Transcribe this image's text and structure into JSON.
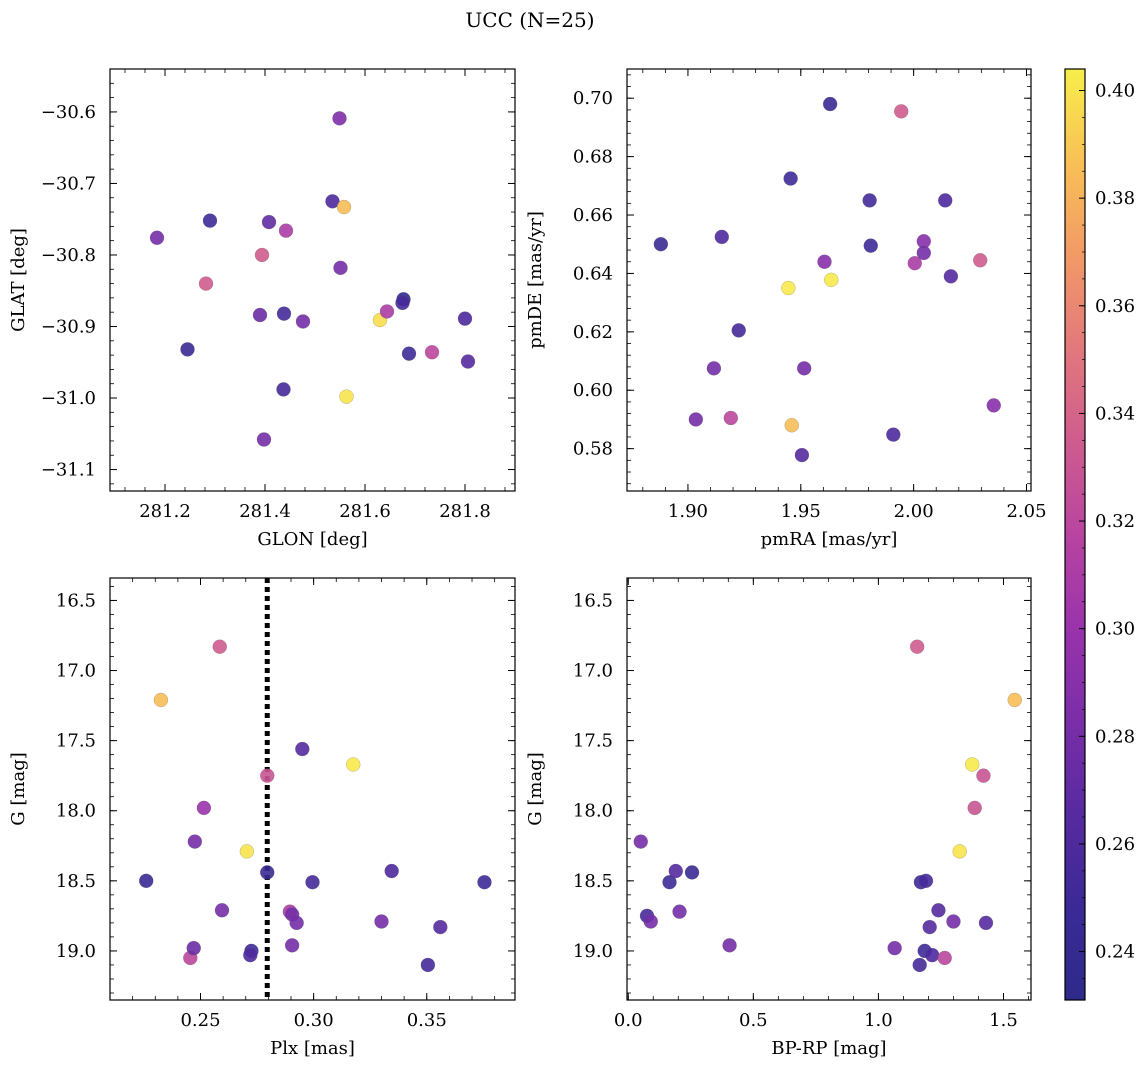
{
  "figure_title": "UCC (N=25)",
  "colorbar": {
    "range": [
      0.231,
      0.404
    ],
    "ticks": [
      0.24,
      0.26,
      0.28,
      0.3,
      0.32,
      0.34,
      0.36,
      0.38,
      0.4
    ],
    "tick_labels": [
      "0.24",
      "0.26",
      "0.28",
      "0.30",
      "0.32",
      "0.34",
      "0.36",
      "0.38",
      "0.40"
    ],
    "colormap": "plasma",
    "stops": [
      "#2e2a8a",
      "#3b2a96",
      "#572aa0",
      "#7a2ea8",
      "#9a33ac",
      "#b844a0",
      "#cf5c8e",
      "#e3787c",
      "#f29a66",
      "#f9c056",
      "#f7ee4a"
    ]
  },
  "chart_data": [
    {
      "id": "glon-glat",
      "type": "scatter",
      "xlabel": "GLON [deg]",
      "ylabel": "GLAT [deg]",
      "xlim": [
        281.09,
        281.9
      ],
      "ylim": [
        -31.13,
        -30.54
      ],
      "xticks": [
        281.2,
        281.4,
        281.6,
        281.8
      ],
      "xtick_labels": [
        "281.2",
        "281.4",
        "281.6",
        "281.8"
      ],
      "yticks": [
        -31.1,
        -31.0,
        -30.9,
        -30.8,
        -30.7,
        -30.6
      ],
      "ytick_labels": [
        "−31.1",
        "−31.0",
        "−30.9",
        "−30.8",
        "−30.7",
        "−30.6"
      ],
      "points": [
        {
          "x": 281.184,
          "y": -30.776,
          "c": 0.28
        },
        {
          "x": 281.29,
          "y": -30.752,
          "c": 0.25
        },
        {
          "x": 281.245,
          "y": -30.932,
          "c": 0.245
        },
        {
          "x": 281.282,
          "y": -30.84,
          "c": 0.335
        },
        {
          "x": 281.394,
          "y": -30.8,
          "c": 0.335
        },
        {
          "x": 281.408,
          "y": -30.754,
          "c": 0.27
        },
        {
          "x": 281.442,
          "y": -30.766,
          "c": 0.31
        },
        {
          "x": 281.438,
          "y": -30.882,
          "c": 0.255
        },
        {
          "x": 281.39,
          "y": -30.884,
          "c": 0.275
        },
        {
          "x": 281.476,
          "y": -30.893,
          "c": 0.28
        },
        {
          "x": 281.437,
          "y": -30.988,
          "c": 0.255
        },
        {
          "x": 281.398,
          "y": -31.058,
          "c": 0.28
        },
        {
          "x": 281.549,
          "y": -30.609,
          "c": 0.285
        },
        {
          "x": 281.535,
          "y": -30.725,
          "c": 0.26
        },
        {
          "x": 281.558,
          "y": -30.733,
          "c": 0.385
        },
        {
          "x": 281.551,
          "y": -30.818,
          "c": 0.28
        },
        {
          "x": 281.563,
          "y": -30.998,
          "c": 0.4
        },
        {
          "x": 281.63,
          "y": -30.891,
          "c": 0.398
        },
        {
          "x": 281.644,
          "y": -30.879,
          "c": 0.31
        },
        {
          "x": 281.677,
          "y": -30.862,
          "c": 0.235
        },
        {
          "x": 281.675,
          "y": -30.867,
          "c": 0.255
        },
        {
          "x": 281.688,
          "y": -30.938,
          "c": 0.25
        },
        {
          "x": 281.734,
          "y": -30.936,
          "c": 0.32
        },
        {
          "x": 281.8,
          "y": -30.889,
          "c": 0.26
        },
        {
          "x": 281.806,
          "y": -30.949,
          "c": 0.265
        }
      ]
    },
    {
      "id": "pmra-pmde",
      "type": "scatter",
      "xlabel": "pmRA [mas/yr]",
      "ylabel": "pmDE [mas/yr]",
      "xlim": [
        1.873,
        2.052
      ],
      "ylim": [
        0.5655,
        0.71
      ],
      "xticks": [
        1.9,
        1.95,
        2.0,
        2.05
      ],
      "xtick_labels": [
        "1.90",
        "1.95",
        "2.00",
        "2.05"
      ],
      "yticks": [
        0.58,
        0.6,
        0.62,
        0.64,
        0.66,
        0.68,
        0.7
      ],
      "ytick_labels": [
        "0.58",
        "0.60",
        "0.62",
        "0.64",
        "0.66",
        "0.68",
        "0.70"
      ],
      "points": [
        {
          "x": 1.888,
          "y": 0.65,
          "c": 0.245
        },
        {
          "x": 1.915,
          "y": 0.6525,
          "c": 0.26
        },
        {
          "x": 1.9225,
          "y": 0.6205,
          "c": 0.255
        },
        {
          "x": 1.9115,
          "y": 0.6075,
          "c": 0.28
        },
        {
          "x": 1.9035,
          "y": 0.59,
          "c": 0.28
        },
        {
          "x": 1.919,
          "y": 0.5905,
          "c": 0.32
        },
        {
          "x": 1.9445,
          "y": 0.635,
          "c": 0.402
        },
        {
          "x": 1.9455,
          "y": 0.6725,
          "c": 0.25
        },
        {
          "x": 1.946,
          "y": 0.588,
          "c": 0.385
        },
        {
          "x": 1.9505,
          "y": 0.5778,
          "c": 0.265
        },
        {
          "x": 1.9515,
          "y": 0.6075,
          "c": 0.28
        },
        {
          "x": 1.9605,
          "y": 0.644,
          "c": 0.29
        },
        {
          "x": 1.963,
          "y": 0.698,
          "c": 0.245
        },
        {
          "x": 1.9635,
          "y": 0.6378,
          "c": 0.402
        },
        {
          "x": 1.9805,
          "y": 0.665,
          "c": 0.255
        },
        {
          "x": 1.981,
          "y": 0.6495,
          "c": 0.25
        },
        {
          "x": 1.991,
          "y": 0.5848,
          "c": 0.26
        },
        {
          "x": 1.9945,
          "y": 0.6955,
          "c": 0.335
        },
        {
          "x": 2.0005,
          "y": 0.6435,
          "c": 0.31
        },
        {
          "x": 2.0045,
          "y": 0.651,
          "c": 0.29
        },
        {
          "x": 2.0045,
          "y": 0.647,
          "c": 0.28
        },
        {
          "x": 2.014,
          "y": 0.665,
          "c": 0.26
        },
        {
          "x": 2.0165,
          "y": 0.639,
          "c": 0.265
        },
        {
          "x": 2.0295,
          "y": 0.6445,
          "c": 0.335
        },
        {
          "x": 2.0355,
          "y": 0.5948,
          "c": 0.29
        }
      ]
    },
    {
      "id": "plx-g",
      "type": "scatter",
      "xlabel": "Plx [mas]",
      "ylabel": "G [mag]",
      "xlim": [
        0.21,
        0.389
      ],
      "ylim": [
        19.35,
        16.34
      ],
      "xticks": [
        0.25,
        0.3,
        0.35
      ],
      "xtick_labels": [
        "0.25",
        "0.30",
        "0.35"
      ],
      "yticks": [
        16.5,
        17.0,
        17.5,
        18.0,
        18.5,
        19.0
      ],
      "ytick_labels": [
        "16.5",
        "17.0",
        "17.5",
        "18.0",
        "18.5",
        "19.0"
      ],
      "vline": {
        "x": 0.2795
      },
      "points": [
        {
          "x": 0.226,
          "y": 18.5,
          "c": 0.245
        },
        {
          "x": 0.2325,
          "y": 17.21,
          "c": 0.385
        },
        {
          "x": 0.2455,
          "y": 19.05,
          "c": 0.32
        },
        {
          "x": 0.247,
          "y": 18.98,
          "c": 0.275
        },
        {
          "x": 0.2475,
          "y": 18.22,
          "c": 0.28
        },
        {
          "x": 0.2515,
          "y": 17.98,
          "c": 0.3
        },
        {
          "x": 0.2585,
          "y": 16.83,
          "c": 0.335
        },
        {
          "x": 0.2595,
          "y": 18.71,
          "c": 0.28
        },
        {
          "x": 0.2705,
          "y": 18.29,
          "c": 0.4
        },
        {
          "x": 0.2725,
          "y": 19.0,
          "c": 0.25
        },
        {
          "x": 0.272,
          "y": 19.03,
          "c": 0.26
        },
        {
          "x": 0.2795,
          "y": 17.75,
          "c": 0.33
        },
        {
          "x": 0.2795,
          "y": 18.44,
          "c": 0.245
        },
        {
          "x": 0.2895,
          "y": 18.72,
          "c": 0.31
        },
        {
          "x": 0.2905,
          "y": 18.74,
          "c": 0.28
        },
        {
          "x": 0.2905,
          "y": 18.96,
          "c": 0.28
        },
        {
          "x": 0.2925,
          "y": 18.8,
          "c": 0.28
        },
        {
          "x": 0.295,
          "y": 17.56,
          "c": 0.265
        },
        {
          "x": 0.2995,
          "y": 18.51,
          "c": 0.255
        },
        {
          "x": 0.3175,
          "y": 17.67,
          "c": 0.402
        },
        {
          "x": 0.33,
          "y": 18.79,
          "c": 0.28
        },
        {
          "x": 0.3345,
          "y": 18.43,
          "c": 0.26
        },
        {
          "x": 0.3505,
          "y": 19.1,
          "c": 0.255
        },
        {
          "x": 0.356,
          "y": 18.83,
          "c": 0.265
        },
        {
          "x": 0.3755,
          "y": 18.51,
          "c": 0.25
        }
      ]
    },
    {
      "id": "bprp-g",
      "type": "scatter",
      "xlabel": "BP-RP [mag]",
      "ylabel": "G [mag]",
      "xlim": [
        -0.005,
        1.61
      ],
      "ylim": [
        19.35,
        16.34
      ],
      "xticks": [
        0.0,
        0.5,
        1.0,
        1.5
      ],
      "xtick_labels": [
        "0.0",
        "0.5",
        "1.0",
        "1.5"
      ],
      "yticks": [
        16.5,
        17.0,
        17.5,
        18.0,
        18.5,
        19.0
      ],
      "ytick_labels": [
        "16.5",
        "17.0",
        "17.5",
        "18.0",
        "18.5",
        "19.0"
      ],
      "points": [
        {
          "x": 0.05,
          "y": 18.22,
          "c": 0.28
        },
        {
          "x": 0.075,
          "y": 18.75,
          "c": 0.255
        },
        {
          "x": 0.09,
          "y": 18.79,
          "c": 0.28
        },
        {
          "x": 0.165,
          "y": 18.51,
          "c": 0.25
        },
        {
          "x": 0.19,
          "y": 18.43,
          "c": 0.265
        },
        {
          "x": 0.205,
          "y": 18.72,
          "c": 0.28
        },
        {
          "x": 0.255,
          "y": 18.44,
          "c": 0.245
        },
        {
          "x": 0.405,
          "y": 18.96,
          "c": 0.28
        },
        {
          "x": 1.065,
          "y": 18.98,
          "c": 0.28
        },
        {
          "x": 1.155,
          "y": 16.83,
          "c": 0.335
        },
        {
          "x": 1.165,
          "y": 19.1,
          "c": 0.255
        },
        {
          "x": 1.17,
          "y": 18.51,
          "c": 0.25
        },
        {
          "x": 1.185,
          "y": 19.0,
          "c": 0.25
        },
        {
          "x": 1.19,
          "y": 18.5,
          "c": 0.255
        },
        {
          "x": 1.205,
          "y": 18.83,
          "c": 0.265
        },
        {
          "x": 1.215,
          "y": 19.03,
          "c": 0.26
        },
        {
          "x": 1.24,
          "y": 18.71,
          "c": 0.265
        },
        {
          "x": 1.265,
          "y": 19.05,
          "c": 0.32
        },
        {
          "x": 1.325,
          "y": 18.29,
          "c": 0.4
        },
        {
          "x": 1.375,
          "y": 17.67,
          "c": 0.402
        },
        {
          "x": 1.385,
          "y": 17.98,
          "c": 0.33
        },
        {
          "x": 1.42,
          "y": 17.75,
          "c": 0.33
        },
        {
          "x": 1.43,
          "y": 18.8,
          "c": 0.265
        },
        {
          "x": 1.545,
          "y": 17.21,
          "c": 0.385
        },
        {
          "x": 1.3,
          "y": 18.79,
          "c": 0.28
        }
      ]
    }
  ]
}
